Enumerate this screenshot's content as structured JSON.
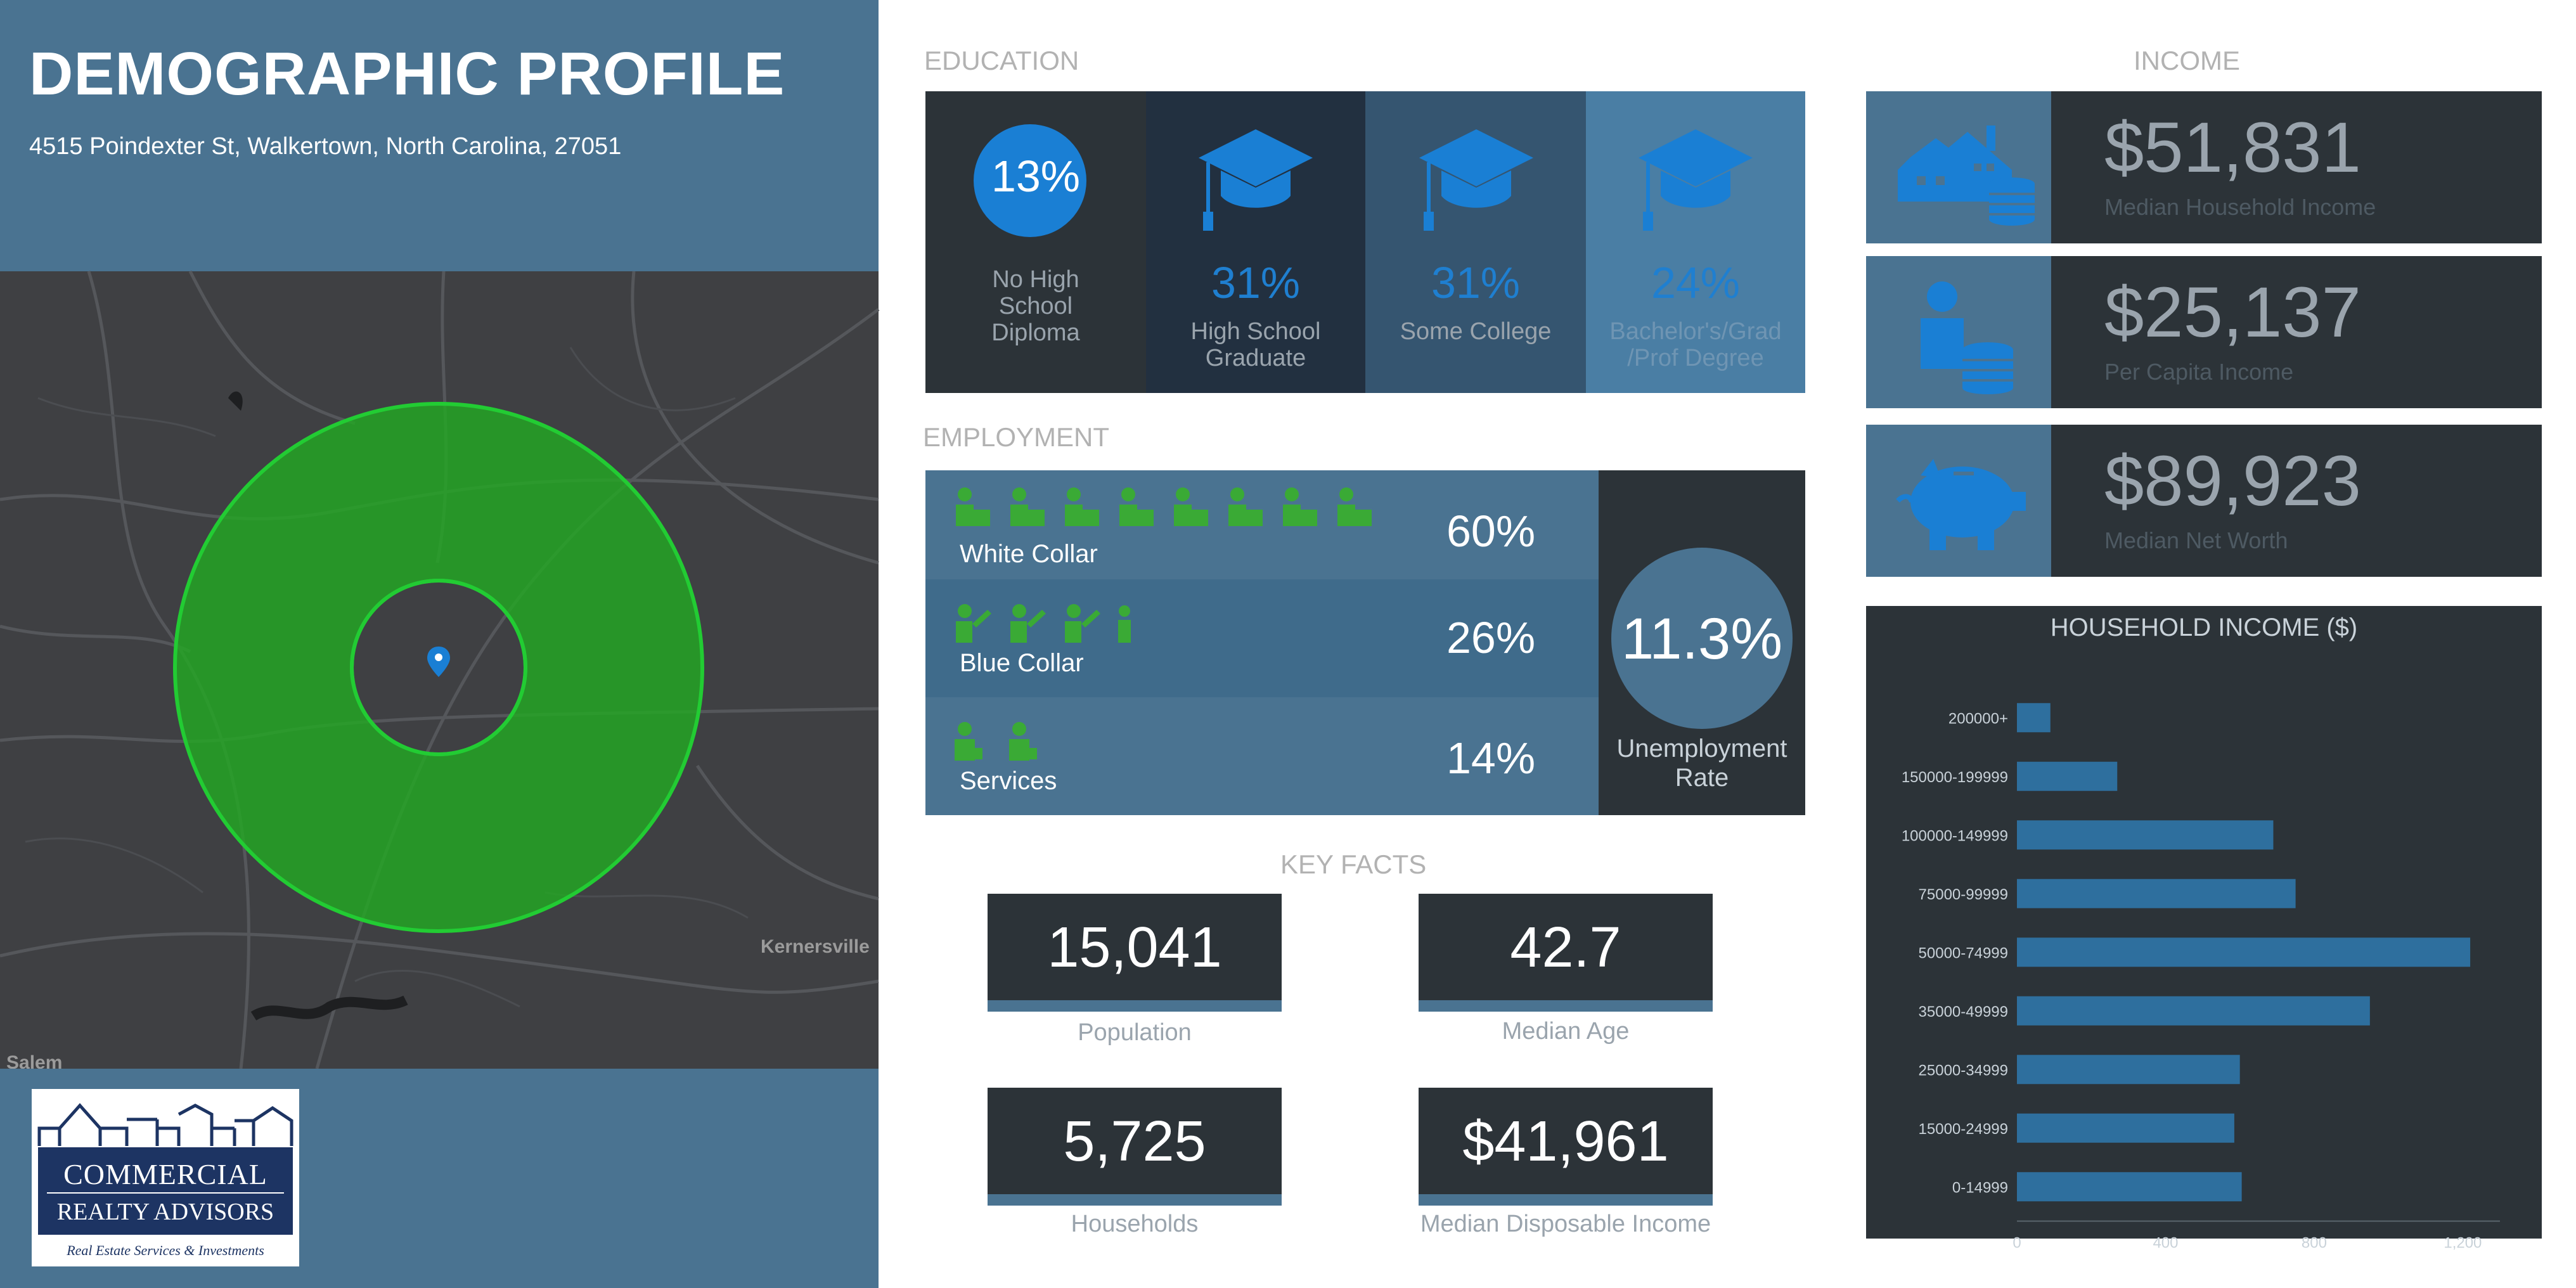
{
  "header": {
    "title": "DEMOGRAPHIC PROFILE",
    "address": "4515 Poindexter St, Walkertown, North Carolina, 27051"
  },
  "map": {
    "places": [
      "Kernersville",
      "Salem"
    ]
  },
  "logo": {
    "line1": "COMMERCIAL",
    "line2": "REALTY ADVISORS",
    "tagline": "Real Estate Services & Investments"
  },
  "education": {
    "heading": "EDUCATION",
    "items": [
      {
        "pct": "13%",
        "label_lines": [
          "No High",
          "School",
          "Diploma"
        ]
      },
      {
        "pct": "31%",
        "label_lines": [
          "High School",
          "Graduate"
        ]
      },
      {
        "pct": "31%",
        "label_lines": [
          "Some College"
        ]
      },
      {
        "pct": "24%",
        "label_lines": [
          "Bachelor's/Grad",
          "/Prof Degree"
        ]
      }
    ]
  },
  "employment": {
    "heading": "EMPLOYMENT",
    "rows": [
      {
        "label": "White Collar",
        "pct": "60%",
        "icons": 8
      },
      {
        "label": "Blue Collar",
        "pct": "26%",
        "icons": 4
      },
      {
        "label": "Services",
        "pct": "14%",
        "icons": 2
      }
    ],
    "unemployment": {
      "value": "11.3%",
      "label_lines": [
        "Unemployment",
        "Rate"
      ]
    }
  },
  "key_facts": {
    "heading": "KEY FACTS",
    "items": [
      {
        "value": "15,041",
        "label": "Population"
      },
      {
        "value": "42.7",
        "label": "Median Age"
      },
      {
        "value": "5,725",
        "label": "Households"
      },
      {
        "value": "$41,961",
        "label": "Median Disposable Income"
      }
    ]
  },
  "income": {
    "heading": "INCOME",
    "items": [
      {
        "value": "$51,831",
        "label": "Median Household Income",
        "icon": "house-coins-icon"
      },
      {
        "value": "$25,137",
        "label": "Per Capita Income",
        "icon": "person-coins-icon"
      },
      {
        "value": "$89,923",
        "label": "Median Net Worth",
        "icon": "piggy-bank-icon"
      }
    ]
  },
  "colors": {
    "panel_blue": "#4a7391",
    "dark": "#2c3338",
    "accent_blue": "#1f7fd0",
    "green": "#3aaa35",
    "bar_blue": "#2e6f9e"
  },
  "chart_data": {
    "type": "bar",
    "orientation": "horizontal",
    "title": "HOUSEHOLD INCOME ($)",
    "categories": [
      "200000+",
      "150000-199999",
      "100000-149999",
      "75000-99999",
      "50000-74999",
      "35000-49999",
      "25000-34999",
      "15000-24999",
      "0-14999"
    ],
    "values": [
      90,
      270,
      690,
      750,
      1220,
      950,
      600,
      585,
      605
    ],
    "xlim": [
      0,
      1300
    ],
    "xticks": [
      "0",
      "400",
      "800",
      "1,200"
    ],
    "xlabel": "",
    "ylabel": "",
    "grid": false
  }
}
